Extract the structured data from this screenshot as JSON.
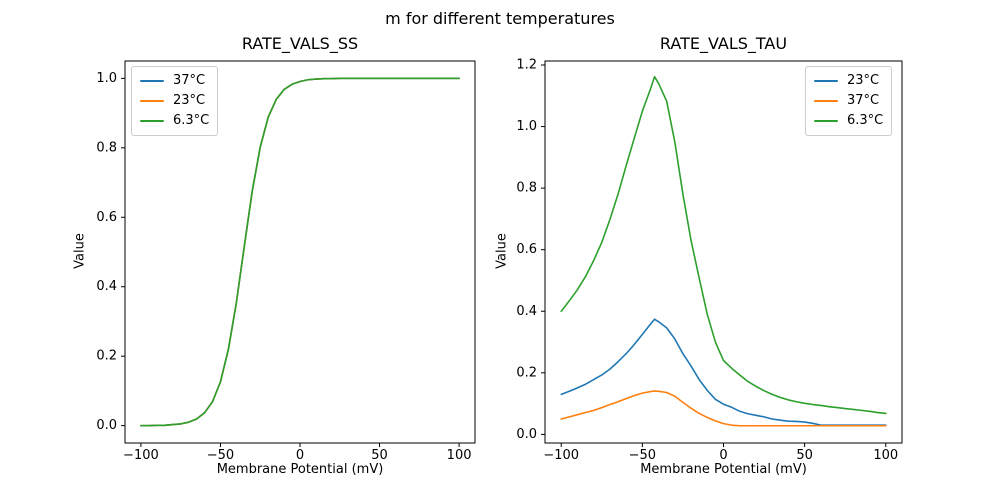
{
  "figure": {
    "title": "m for different temperatures",
    "background": "#ffffff",
    "text_color": "#000000",
    "axes_edge_color": "#000000"
  },
  "chart_data": [
    {
      "type": "line",
      "title": "RATE_VALS_SS",
      "xlabel": "Membrane Potential (mV)",
      "ylabel": "Value",
      "xlim": [
        -110,
        110
      ],
      "ylim": [
        -0.05,
        1.05
      ],
      "xticks": [
        -100,
        -50,
        0,
        50,
        100
      ],
      "xtick_labels": [
        "−100",
        "−50",
        "0",
        "50",
        "100"
      ],
      "yticks": [
        0.0,
        0.2,
        0.4,
        0.6,
        0.8,
        1.0
      ],
      "ytick_labels": [
        "0.0",
        "0.2",
        "0.4",
        "0.6",
        "0.8",
        "1.0"
      ],
      "grid": false,
      "legend_position": "upper-left",
      "overlap_note": "all three temperature curves coincide; green drawn last is visible",
      "x": [
        -100,
        -95,
        -90,
        -85,
        -80,
        -75,
        -70,
        -65,
        -60,
        -55,
        -50,
        -45,
        -40,
        -35,
        -30,
        -25,
        -20,
        -15,
        -10,
        -5,
        0,
        5,
        10,
        15,
        20,
        25,
        30,
        35,
        40,
        45,
        50,
        55,
        60,
        65,
        70,
        75,
        80,
        85,
        90,
        95,
        100
      ],
      "series": [
        {
          "name": "37°C",
          "color": "#1f77b4",
          "values": [
            0.0,
            0.0,
            0.001,
            0.001,
            0.003,
            0.005,
            0.01,
            0.019,
            0.037,
            0.069,
            0.126,
            0.22,
            0.354,
            0.517,
            0.676,
            0.802,
            0.888,
            0.939,
            0.968,
            0.983,
            0.991,
            0.996,
            0.998,
            0.999,
            0.999,
            1.0,
            1.0,
            1.0,
            1.0,
            1.0,
            1.0,
            1.0,
            1.0,
            1.0,
            1.0,
            1.0,
            1.0,
            1.0,
            1.0,
            1.0,
            1.0
          ]
        },
        {
          "name": "23°C",
          "color": "#ff7f0e",
          "values": [
            0.0,
            0.0,
            0.001,
            0.001,
            0.003,
            0.005,
            0.01,
            0.019,
            0.037,
            0.069,
            0.126,
            0.22,
            0.354,
            0.517,
            0.676,
            0.802,
            0.888,
            0.939,
            0.968,
            0.983,
            0.991,
            0.996,
            0.998,
            0.999,
            0.999,
            1.0,
            1.0,
            1.0,
            1.0,
            1.0,
            1.0,
            1.0,
            1.0,
            1.0,
            1.0,
            1.0,
            1.0,
            1.0,
            1.0,
            1.0,
            1.0
          ]
        },
        {
          "name": "6.3°C",
          "color": "#2ca02c",
          "values": [
            0.0,
            0.0,
            0.001,
            0.001,
            0.003,
            0.005,
            0.01,
            0.019,
            0.037,
            0.069,
            0.126,
            0.22,
            0.354,
            0.517,
            0.676,
            0.802,
            0.888,
            0.939,
            0.968,
            0.983,
            0.991,
            0.996,
            0.998,
            0.999,
            0.999,
            1.0,
            1.0,
            1.0,
            1.0,
            1.0,
            1.0,
            1.0,
            1.0,
            1.0,
            1.0,
            1.0,
            1.0,
            1.0,
            1.0,
            1.0,
            1.0
          ]
        }
      ]
    },
    {
      "type": "line",
      "title": "RATE_VALS_TAU",
      "xlabel": "Membrane Potential (mV)",
      "ylabel": "Value",
      "xlim": [
        -110,
        110
      ],
      "ylim": [
        -0.028,
        1.213
      ],
      "xticks": [
        -100,
        -50,
        0,
        50,
        100
      ],
      "xtick_labels": [
        "−100",
        "−50",
        "0",
        "50",
        "100"
      ],
      "yticks": [
        0.0,
        0.2,
        0.4,
        0.6,
        0.8,
        1.0,
        1.2
      ],
      "ytick_labels": [
        "0.0",
        "0.2",
        "0.4",
        "0.6",
        "0.8",
        "1.0",
        "1.2"
      ],
      "grid": false,
      "legend_position": "upper-right",
      "x": [
        -100,
        -95,
        -90,
        -85,
        -80,
        -75,
        -70,
        -65,
        -60,
        -55,
        -50,
        -45,
        -42.5,
        -40,
        -35,
        -30,
        -25,
        -20,
        -15,
        -10,
        -5,
        0,
        5,
        10,
        15,
        20,
        25,
        30,
        35,
        40,
        45,
        50,
        55,
        60,
        65,
        70,
        75,
        80,
        85,
        90,
        95,
        100
      ],
      "series": [
        {
          "name": "23°C",
          "color": "#1f77b4",
          "values": [
            0.13,
            0.14,
            0.151,
            0.163,
            0.178,
            0.193,
            0.212,
            0.236,
            0.262,
            0.292,
            0.325,
            0.358,
            0.374,
            0.366,
            0.346,
            0.31,
            0.262,
            0.222,
            0.178,
            0.143,
            0.114,
            0.098,
            0.088,
            0.075,
            0.067,
            0.062,
            0.057,
            0.05,
            0.046,
            0.043,
            0.042,
            0.04,
            0.036,
            0.03,
            0.03,
            0.03,
            0.03,
            0.03,
            0.03,
            0.03,
            0.03,
            0.03
          ]
        },
        {
          "name": "37°C",
          "color": "#ff7f0e",
          "values": [
            0.05,
            0.057,
            0.064,
            0.071,
            0.078,
            0.087,
            0.097,
            0.106,
            0.116,
            0.126,
            0.134,
            0.139,
            0.141,
            0.14,
            0.136,
            0.124,
            0.104,
            0.085,
            0.068,
            0.055,
            0.044,
            0.035,
            0.03,
            0.028,
            0.028,
            0.028,
            0.028,
            0.028,
            0.028,
            0.028,
            0.028,
            0.028,
            0.028,
            0.028,
            0.028,
            0.028,
            0.028,
            0.028,
            0.028,
            0.028,
            0.028,
            0.028
          ]
        },
        {
          "name": "6.3°C",
          "color": "#2ca02c",
          "values": [
            0.4,
            0.434,
            0.47,
            0.513,
            0.565,
            0.624,
            0.698,
            0.78,
            0.873,
            0.962,
            1.05,
            1.122,
            1.162,
            1.14,
            1.082,
            0.95,
            0.78,
            0.63,
            0.508,
            0.39,
            0.3,
            0.24,
            0.215,
            0.193,
            0.172,
            0.156,
            0.142,
            0.13,
            0.12,
            0.112,
            0.106,
            0.101,
            0.097,
            0.094,
            0.09,
            0.087,
            0.084,
            0.081,
            0.078,
            0.075,
            0.071,
            0.068
          ]
        }
      ]
    }
  ]
}
